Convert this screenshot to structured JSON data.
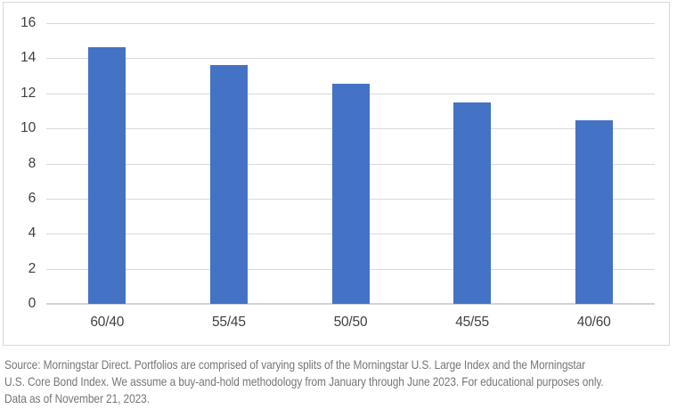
{
  "chart_data": {
    "type": "bar",
    "categories": [
      "60/40",
      "55/45",
      "50/50",
      "45/55",
      "40/60"
    ],
    "values": [
      14.65,
      13.6,
      12.55,
      11.5,
      10.45
    ],
    "title": "",
    "xlabel": "",
    "ylabel": "",
    "ylim": [
      0,
      16
    ],
    "ytick_step": 2,
    "ytick_labels": [
      "0",
      "2",
      "4",
      "6",
      "8",
      "10",
      "12",
      "14",
      "16"
    ],
    "grid": true,
    "legend": false,
    "bar_color": "#4472c4"
  },
  "colors": {
    "bar": "#4472c4",
    "gridline": "#d9d9d9",
    "axis_line": "#d3d3d3",
    "frame_border": "#d9d9d9",
    "axis_text": "#404040",
    "footer_text": "#767676"
  },
  "footer": {
    "lines": [
      "Source: Morningstar Direct. Portfolios are comprised of varying splits of the Morningstar U.S. Large Index and the Morningstar",
      "U.S. Core Bond Index. We assume a buy-and-hold methodology from January through June 2023. For educational purposes only.",
      "Data as of November 21, 2023."
    ]
  }
}
